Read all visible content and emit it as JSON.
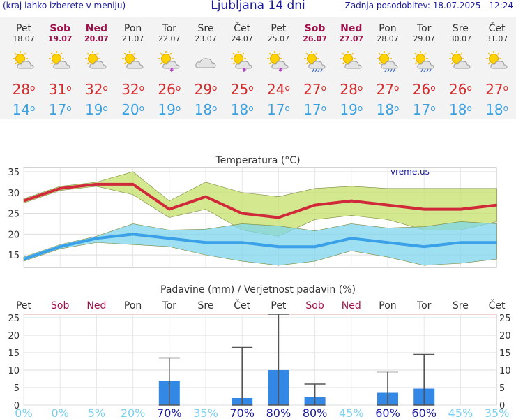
{
  "header": {
    "left": "(kraj lahko izberete v meniju)",
    "title": "Ljubljana 14 dni",
    "updated": "Zadnja posodobitev: 18.07.2025 - 12:24"
  },
  "colors": {
    "max": "#d62a2a",
    "min": "#3aa0e0",
    "weekend": "#a0104a",
    "bar": "#3388e6",
    "prob_high": "#1a1aa0",
    "prob_low": "#7ad0f0"
  },
  "days": [
    {
      "name": "Pet",
      "date": "18.07",
      "weekend": false,
      "icon": "sun-cloud-icon",
      "tmax": "28",
      "tmin": "14"
    },
    {
      "name": "Sob",
      "date": "19.07",
      "weekend": true,
      "icon": "sun-cloud-icon",
      "tmax": "31",
      "tmin": "17"
    },
    {
      "name": "Ned",
      "date": "20.07",
      "weekend": true,
      "icon": "sun-cloud-icon",
      "tmax": "32",
      "tmin": "19"
    },
    {
      "name": "Pon",
      "date": "21.07",
      "weekend": false,
      "icon": "sun-cloud-icon",
      "tmax": "32",
      "tmin": "20"
    },
    {
      "name": "Tor",
      "date": "22.07",
      "weekend": false,
      "icon": "sun-cloud-storm-icon",
      "tmax": "26",
      "tmin": "19"
    },
    {
      "name": "Sre",
      "date": "23.07",
      "weekend": false,
      "icon": "cloudy-icon",
      "tmax": "29",
      "tmin": "18"
    },
    {
      "name": "Čet",
      "date": "24.07",
      "weekend": false,
      "icon": "sun-cloud-storm-icon",
      "tmax": "25",
      "tmin": "18"
    },
    {
      "name": "Pet",
      "date": "25.07",
      "weekend": false,
      "icon": "sun-cloud-storm-icon",
      "tmax": "24",
      "tmin": "17"
    },
    {
      "name": "Sob",
      "date": "26.07",
      "weekend": true,
      "icon": "sun-cloud-rain-icon",
      "tmax": "27",
      "tmin": "17"
    },
    {
      "name": "Ned",
      "date": "27.07",
      "weekend": true,
      "icon": "sun-cloud-icon",
      "tmax": "28",
      "tmin": "19"
    },
    {
      "name": "Pon",
      "date": "28.07",
      "weekend": false,
      "icon": "sun-cloud-rain-icon",
      "tmax": "27",
      "tmin": "18"
    },
    {
      "name": "Tor",
      "date": "29.07",
      "weekend": false,
      "icon": "sun-cloud-rain-icon",
      "tmax": "26",
      "tmin": "17"
    },
    {
      "name": "Sre",
      "date": "30.07",
      "weekend": false,
      "icon": "sun-cloud-icon",
      "tmax": "26",
      "tmin": "18"
    },
    {
      "name": "Čet",
      "date": "31.07",
      "weekend": false,
      "icon": "sun-cloud-icon",
      "tmax": "27",
      "tmin": "18"
    }
  ],
  "chart_data": [
    {
      "type": "line",
      "title": "Temperatura (°C)",
      "watermark": "vreme.us",
      "ylim": [
        12,
        36
      ],
      "yticks": [
        15,
        20,
        25,
        30,
        35
      ],
      "grid": true,
      "series": [
        {
          "name": "max",
          "values": [
            28,
            31,
            32,
            32,
            26,
            29,
            25,
            24,
            27,
            28,
            27,
            26,
            26,
            27
          ],
          "band_low": [
            27.5,
            30.5,
            31.5,
            29.5,
            24,
            26,
            21,
            19.5,
            23.5,
            24.5,
            23.5,
            21,
            21,
            23
          ],
          "band_high": [
            28.5,
            31.5,
            32.5,
            35,
            28,
            32.5,
            30,
            29,
            31,
            31.5,
            31,
            31,
            31,
            31
          ]
        },
        {
          "name": "min",
          "values": [
            14,
            17,
            19,
            20,
            19,
            18,
            18,
            17,
            17,
            19,
            18,
            17,
            18,
            18
          ],
          "band_low": [
            13.5,
            16.5,
            18,
            17.5,
            17,
            15,
            13.5,
            12.5,
            13.5,
            16,
            14.5,
            12.5,
            13,
            14
          ],
          "band_high": [
            14.5,
            17.5,
            19.5,
            22.5,
            21,
            21.2,
            22.5,
            22,
            20.8,
            22.5,
            21.5,
            21.8,
            23,
            22.5
          ]
        }
      ]
    },
    {
      "type": "bar",
      "title": "Padavine (mm) / Verjetnost padavin (%)",
      "categories": [
        "Pet",
        "Sob",
        "Ned",
        "Pon",
        "Tor",
        "Sre",
        "Čet",
        "Pet",
        "Sob",
        "Ned",
        "Pon",
        "Tor",
        "Sre",
        "Čet"
      ],
      "weekend": [
        false,
        true,
        true,
        false,
        false,
        false,
        false,
        false,
        true,
        true,
        false,
        false,
        false,
        false
      ],
      "ylim": [
        0,
        26
      ],
      "yticks": [
        0,
        5,
        10,
        15,
        20,
        25
      ],
      "values": [
        0,
        0,
        0,
        0,
        7,
        0,
        2,
        10,
        2.2,
        0,
        3.5,
        4.7,
        0,
        0
      ],
      "error_high": [
        0,
        0,
        0,
        0,
        13.5,
        0,
        16.5,
        26,
        6,
        0,
        9.5,
        14.5,
        0,
        0
      ],
      "probability": [
        "0%",
        "0%",
        "5%",
        "20%",
        "70%",
        "35%",
        "70%",
        "80%",
        "80%",
        "45%",
        "60%",
        "60%",
        "45%",
        "35%"
      ]
    }
  ]
}
